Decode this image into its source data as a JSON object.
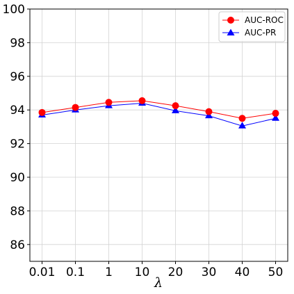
{
  "chart_data": {
    "type": "line",
    "categories": [
      "0.01",
      "0.1",
      "1",
      "10",
      "20",
      "30",
      "40",
      "50"
    ],
    "series": [
      {
        "name": "AUC-ROC",
        "color": "#ff0000",
        "marker": "circle",
        "values": [
          93.85,
          94.15,
          94.45,
          94.55,
          94.25,
          93.9,
          93.5,
          93.8
        ]
      },
      {
        "name": "AUC-PR",
        "color": "#0000ff",
        "marker": "triangle",
        "values": [
          93.7,
          94.0,
          94.25,
          94.4,
          93.95,
          93.65,
          93.05,
          93.5
        ]
      }
    ],
    "xlabel": "λ",
    "ylabel": "",
    "title": "",
    "ylim": [
      85,
      100
    ],
    "yticks": [
      86,
      88,
      90,
      92,
      94,
      96,
      98,
      100
    ],
    "grid": true,
    "legend_position": "top-right"
  }
}
